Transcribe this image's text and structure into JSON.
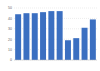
{
  "chart_data": {
    "type": "bar",
    "categories": [
      null,
      null,
      null,
      null,
      null,
      null,
      null,
      null,
      null,
      null
    ],
    "values": [
      44,
      45,
      45,
      46,
      47,
      47,
      19,
      21,
      31,
      39
    ],
    "color": "#3b6fc1",
    "ylim": [
      0,
      50
    ],
    "yticks": [
      0,
      10,
      20,
      30,
      40,
      50
    ],
    "grid": true
  }
}
